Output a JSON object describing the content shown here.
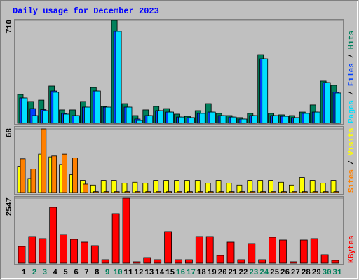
{
  "chart_data": [
    {
      "type": "bar",
      "title": "Daily usage for December 2023",
      "ylim": [
        0,
        710
      ],
      "yticks": [
        710
      ],
      "series": [
        {
          "name": "Pages",
          "color": "#00e0ff",
          "values": [
            174,
            53,
            87,
            213,
            63,
            53,
            111,
            222,
            111,
            633,
            111,
            19,
            53,
            87,
            77,
            43,
            39,
            68,
            77,
            53,
            43,
            29,
            53,
            444,
            53,
            48,
            39,
            68,
            77,
            280,
            208
          ]
        },
        {
          "name": "Files",
          "color": "#0040ff",
          "values": [
            174,
            101,
            94,
            222,
            68,
            53,
            111,
            222,
            111,
            633,
            111,
            29,
            53,
            87,
            77,
            43,
            39,
            68,
            77,
            53,
            43,
            29,
            53,
            444,
            53,
            48,
            39,
            68,
            77,
            280,
            215
          ]
        },
        {
          "name": "Hits",
          "color": "#00805c",
          "values": [
            198,
            150,
            159,
            256,
            92,
            92,
            150,
            246,
            116,
            710,
            135,
            53,
            92,
            116,
            101,
            63,
            48,
            87,
            135,
            68,
            53,
            39,
            68,
            473,
            68,
            58,
            53,
            77,
            126,
            290,
            261
          ]
        }
      ]
    },
    {
      "type": "bar",
      "ylim": [
        0,
        68
      ],
      "yticks": [
        68
      ],
      "series": [
        {
          "name": "Sites",
          "color": "#ff8000",
          "values": [
            36,
            25,
            68,
            39,
            41,
            37,
            9,
            1,
            1,
            1,
            1,
            1,
            1,
            1,
            1,
            1,
            1,
            1,
            1,
            1,
            1,
            1,
            1,
            1,
            1,
            1,
            1,
            1,
            1,
            1,
            1
          ]
        },
        {
          "name": "Visits",
          "color": "#ffff00",
          "values": [
            28,
            15,
            41,
            38,
            30,
            19,
            13,
            8,
            13,
            13,
            10,
            11,
            10,
            13,
            13,
            13,
            13,
            13,
            10,
            13,
            10,
            8,
            13,
            13,
            13,
            11,
            8,
            16,
            13,
            10,
            13
          ]
        }
      ]
    },
    {
      "type": "bar",
      "ylim": [
        0,
        2547
      ],
      "yticks": [
        2547
      ],
      "categories": [
        "1",
        "2",
        "3",
        "4",
        "5",
        "6",
        "7",
        "8",
        "9",
        "10",
        "11",
        "12",
        "13",
        "14",
        "15",
        "16",
        "17",
        "18",
        "19",
        "20",
        "21",
        "22",
        "23",
        "24",
        "25",
        "26",
        "27",
        "28",
        "29",
        "30",
        "31"
      ],
      "weekends": [
        1,
        2,
        8,
        9,
        15,
        16,
        22,
        23,
        29,
        30
      ],
      "weekend_color": "#00805c",
      "series": [
        {
          "name": "KBytes",
          "color": "#ff0000",
          "values": [
            657,
            1041,
            959,
            2192,
            1123,
            932,
            822,
            685,
            137,
            1945,
            2547,
            55,
            219,
            137,
            1233,
            137,
            137,
            1041,
            1041,
            301,
            822,
            137,
            767,
            137,
            1014,
            904,
            55,
            904,
            959,
            329,
            110
          ]
        }
      ]
    }
  ]
}
